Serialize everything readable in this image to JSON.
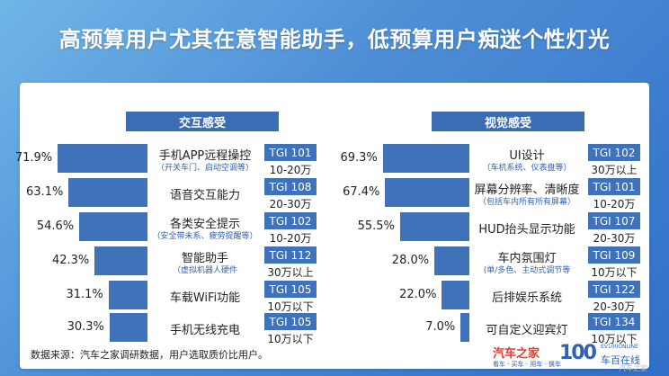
{
  "title": "高预算用户尤其在意智能助手，低预算用户痴迷个性灯光",
  "footnote": "数据来源：汽车之家调研数据，用户选取质价比用户。",
  "logo": {
    "brand": "汽车之家",
    "slogan": "看车 · 买车 · 用车 · 换车",
    "number": "100",
    "english": "EV100ONLINE",
    "chinese": "车百在线"
  },
  "watermark": "汽车之家",
  "chart_data": [
    {
      "type": "bar",
      "title": "交互感受",
      "categories": [
        "手机APP远程操控",
        "语音交互能力",
        "各类安全提示",
        "智能助手",
        "车载WiFi功能",
        "手机无线充电"
      ],
      "sublabels": [
        "（开关车门、启动空调等）",
        "",
        "（安全带未系、疲劳提醒等）",
        "（虚拟机器人硬件",
        "",
        ""
      ],
      "values": [
        71.9,
        63.1,
        54.6,
        42.3,
        31.1,
        30.3
      ],
      "value_labels": [
        "71.9%",
        "63.1%",
        "54.6%",
        "42.3%",
        "31.1%",
        "30.3%"
      ],
      "tgi_labels": [
        "TGI 101",
        "TGI 108",
        "TGI 102",
        "TGI 112",
        "TGI 105",
        "TGI 105"
      ],
      "price_ranges": [
        "10-20万",
        "20-30万",
        "10-20万",
        "30万以上",
        "10万以下",
        "10万以下"
      ],
      "ylim": [
        0,
        100
      ]
    },
    {
      "type": "bar",
      "title": "视觉感受",
      "categories": [
        "UI设计",
        "屏幕分辨率、清晰度",
        "HUD抬头显示功能",
        "车内氛围灯",
        "后排娱乐系统",
        "可自定义迎宾灯"
      ],
      "sublabels": [
        "（车机系统、仪表盘等）",
        "（包括车内所有所有屏幕）",
        "",
        "(单/多色、主动式调节等",
        "",
        ""
      ],
      "values": [
        69.3,
        67.4,
        55.5,
        28.0,
        22.0,
        7.0
      ],
      "value_labels": [
        "69.3%",
        "67.4%",
        "55.5%",
        "28.0%",
        "22.0%",
        "7.0%"
      ],
      "tgi_labels": [
        "TGI 102",
        "TGI 101",
        "TGI 107",
        "TGI 109",
        "TGI 122",
        "TGI 134"
      ],
      "price_ranges": [
        "30万以上",
        "10-20万",
        "20-30万",
        "10万以下",
        "20-30万",
        "10万以下"
      ],
      "ylim": [
        0,
        100
      ]
    }
  ]
}
